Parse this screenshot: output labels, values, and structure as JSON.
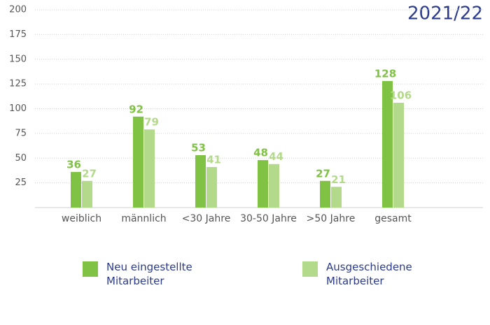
{
  "chart_data": {
    "type": "bar",
    "title": "2021/22",
    "categories": [
      "weiblich",
      "männlich",
      "<30 Jahre",
      "30-50 Jahre",
      ">50 Jahre",
      "gesamt"
    ],
    "series": [
      {
        "name": "Neu eingestellte Mitarbeiter",
        "color": "#80c244",
        "values": [
          36,
          92,
          53,
          48,
          27,
          128
        ]
      },
      {
        "name": "Ausgeschiedene Mitarbeiter",
        "color": "#b3d98a",
        "values": [
          27,
          79,
          41,
          44,
          21,
          106
        ]
      }
    ],
    "ylim": [
      0,
      200
    ],
    "yticks": [
      25,
      50,
      75,
      100,
      125,
      150,
      175,
      200
    ],
    "grid": true
  }
}
